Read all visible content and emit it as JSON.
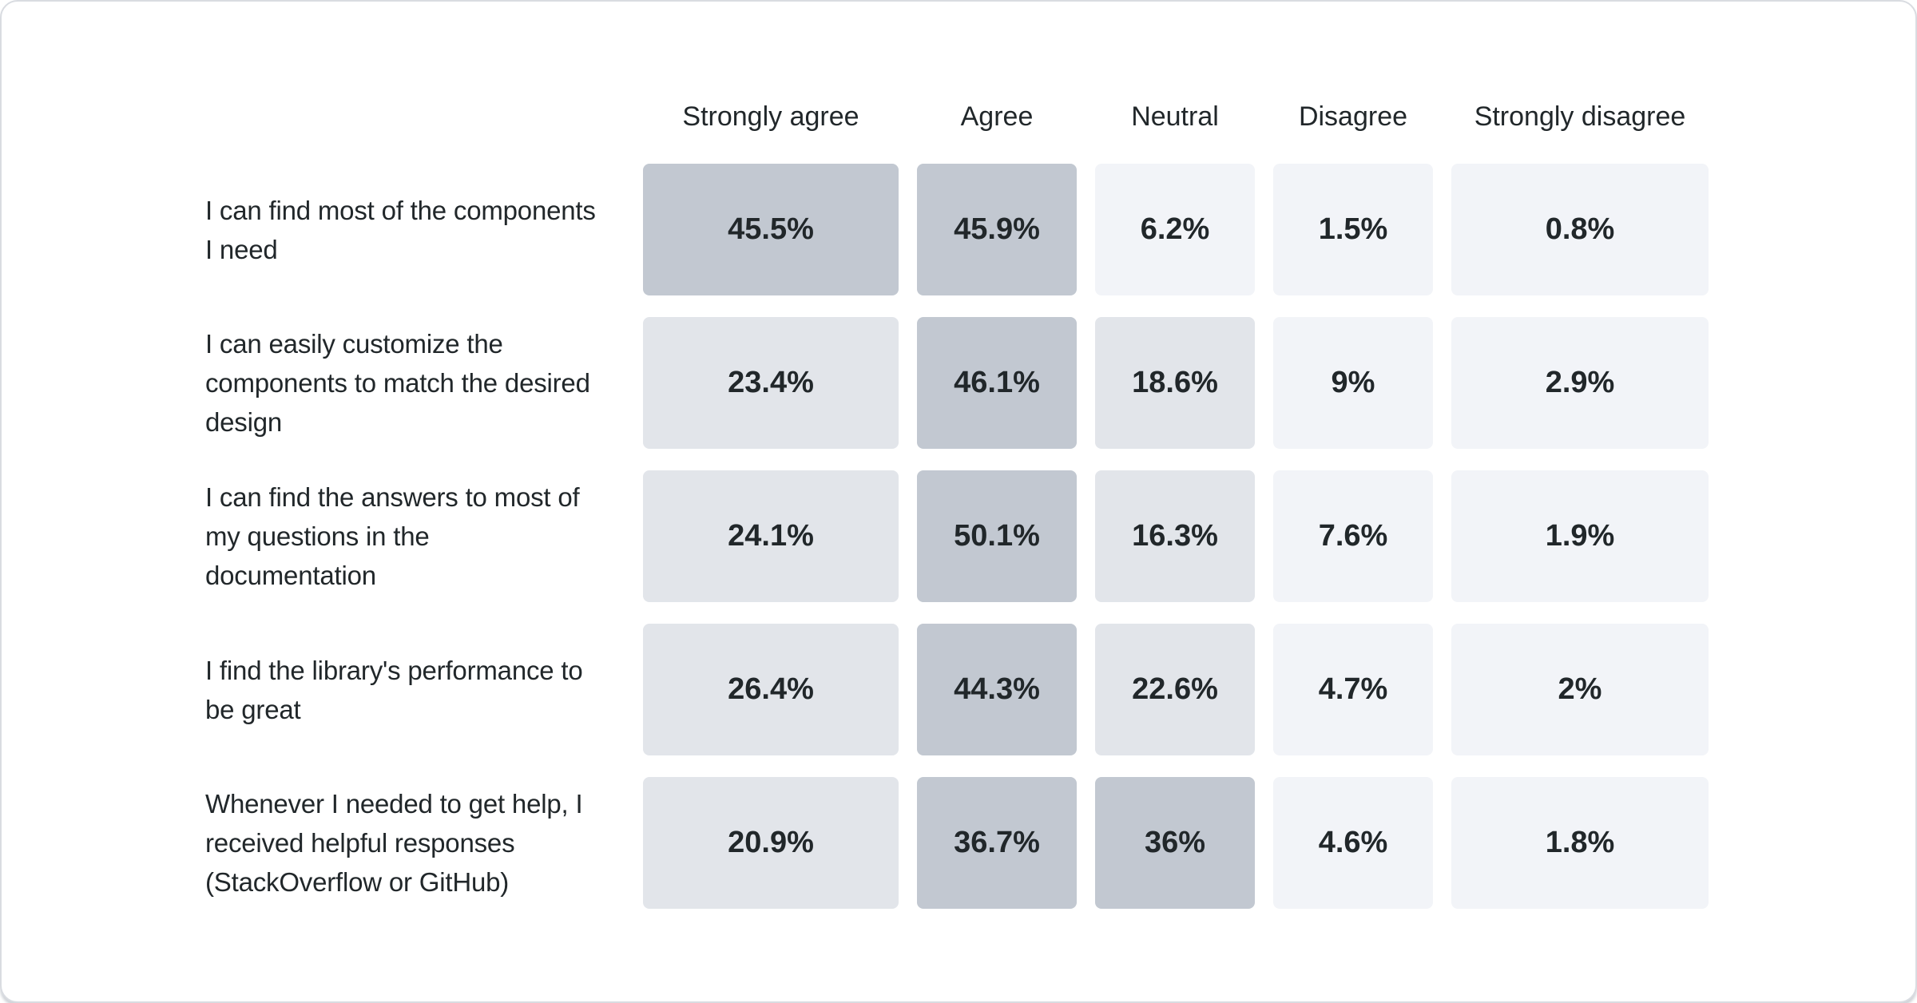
{
  "chart_data": {
    "type": "heatmap",
    "title": "",
    "categories": [
      "Strongly agree",
      "Agree",
      "Neutral",
      "Disagree",
      "Strongly disagree"
    ],
    "rows": [
      {
        "label": "I can find most of the components I need",
        "values": [
          "45.5%",
          "45.9%",
          "6.2%",
          "1.5%",
          "0.8%"
        ]
      },
      {
        "label": "I can easily customize the components to match the desired design",
        "values": [
          "23.4%",
          "46.1%",
          "18.6%",
          "9%",
          "2.9%"
        ]
      },
      {
        "label": "I can find the answers to most of my questions in the documentation",
        "values": [
          "24.1%",
          "50.1%",
          "16.3%",
          "7.6%",
          "1.9%"
        ]
      },
      {
        "label": "I find the library's performance to be great",
        "values": [
          "26.4%",
          "44.3%",
          "22.6%",
          "4.7%",
          "2%"
        ]
      },
      {
        "label": "Whenever I needed to get help, I received helpful responses (StackOverflow or GitHub)",
        "values": [
          "20.9%",
          "36.7%",
          "36%",
          "4.6%",
          "1.8%"
        ]
      }
    ],
    "values_numeric": [
      [
        45.5,
        45.9,
        6.2,
        1.5,
        0.8
      ],
      [
        23.4,
        46.1,
        18.6,
        9,
        2.9
      ],
      [
        24.1,
        50.1,
        16.3,
        7.6,
        1.9
      ],
      [
        26.4,
        44.3,
        22.6,
        4.7,
        2
      ],
      [
        20.9,
        36.7,
        36,
        4.6,
        1.8
      ]
    ],
    "palette": {
      "thresholds": [
        15,
        30
      ],
      "colors": [
        "#f2f4f8",
        "#e2e5ea",
        "#c2c8d1"
      ],
      "text_color": "#21272a"
    },
    "layout": {
      "legend": "none",
      "grid": "off",
      "value_scale": "percent",
      "card_background": "#ffffff",
      "card_border": "#d9dce1"
    }
  }
}
